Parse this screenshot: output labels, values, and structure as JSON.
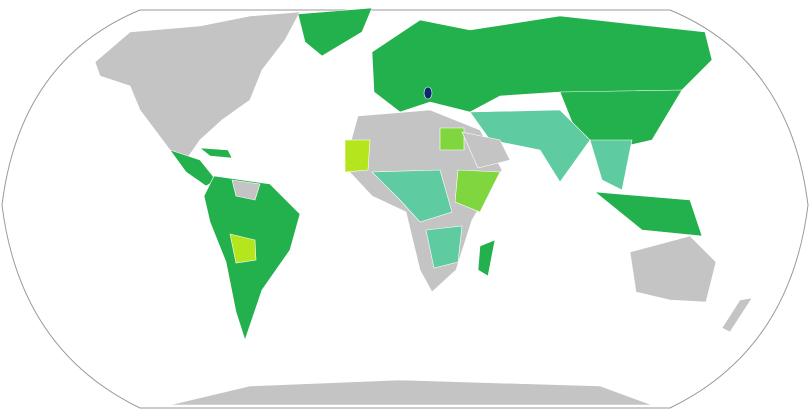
{
  "map": {
    "palette": [
      "#ffffff",
      "#c4c4c4",
      "#22b14c",
      "#5ecba1",
      "#7fd63f",
      "#b5e61d",
      "#0b2a6b",
      "#9a9a9a"
    ]
  }
}
